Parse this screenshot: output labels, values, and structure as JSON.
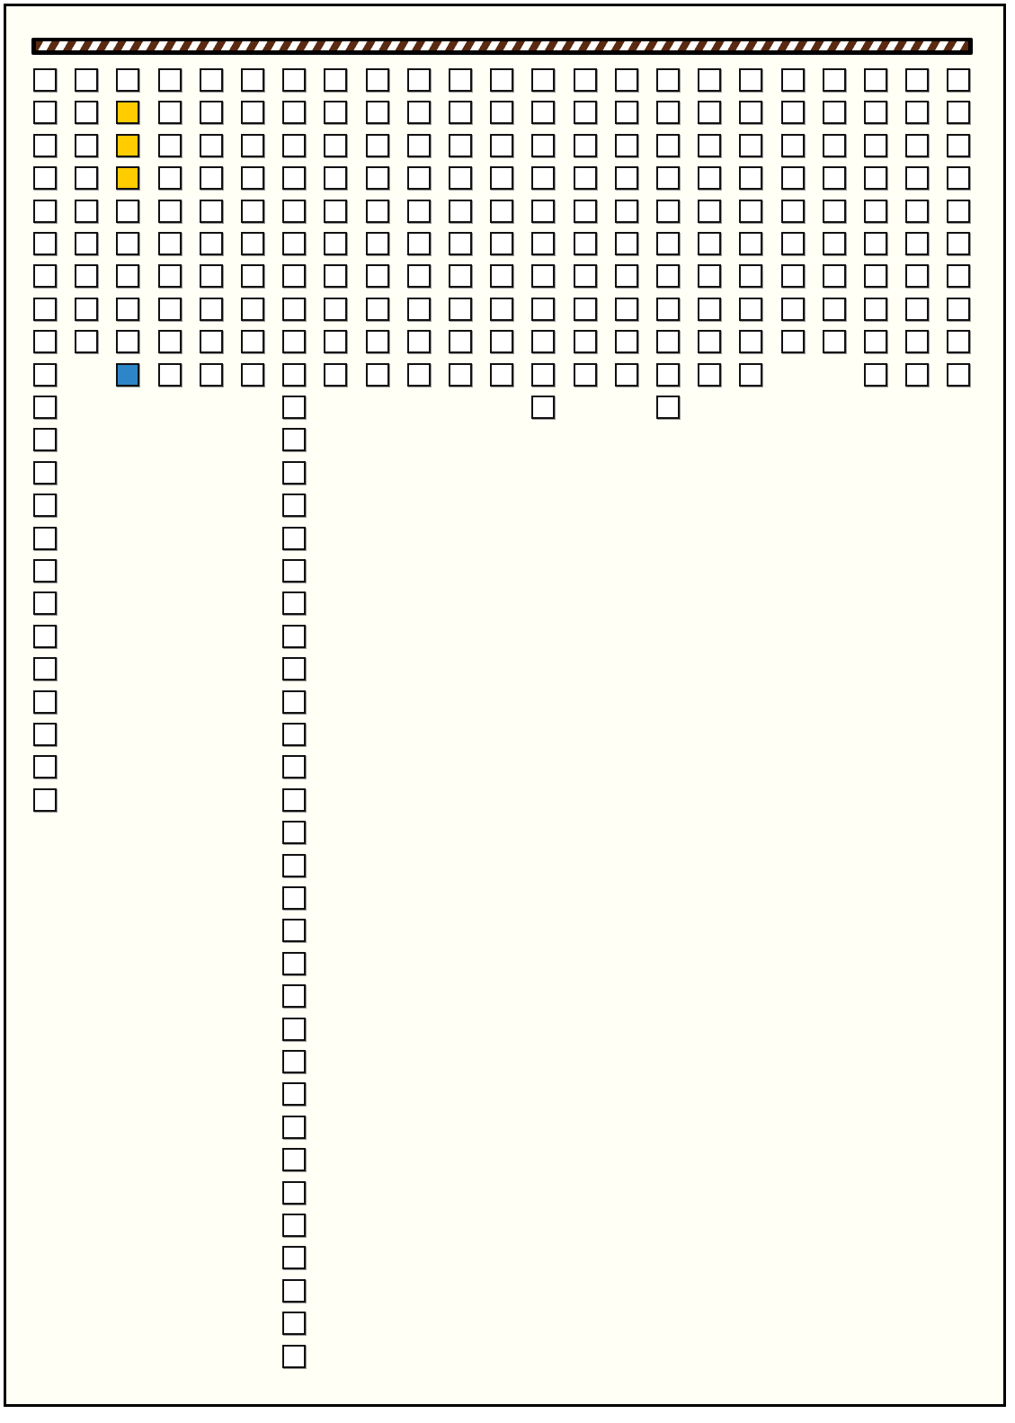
{
  "board": {
    "column_heights": [
      23,
      9,
      10,
      10,
      10,
      10,
      40,
      10,
      10,
      10,
      10,
      10,
      11,
      10,
      10,
      11,
      10,
      10,
      9,
      9,
      10,
      10,
      10
    ],
    "cell_colors": {
      "empty": "#ffffff",
      "yellow": "#ffcc00",
      "blue": "#2e86c8"
    },
    "highlighted_cells": [
      {
        "column": 2,
        "row": 1,
        "color": "yellow"
      },
      {
        "column": 2,
        "row": 2,
        "color": "yellow"
      },
      {
        "column": 2,
        "row": 3,
        "color": "yellow"
      },
      {
        "column": 2,
        "row": 9,
        "color": "blue"
      }
    ]
  },
  "top_bar": {
    "stripe_colors": [
      "#5a2a12",
      "#ffffff"
    ],
    "frame_color": "#000000"
  }
}
